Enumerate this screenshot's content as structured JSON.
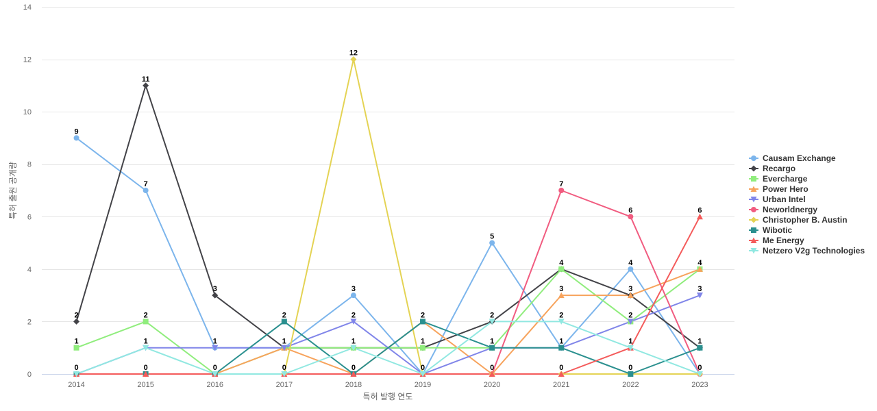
{
  "chart_data": {
    "type": "line",
    "title": "",
    "xlabel": "특허 발행 연도",
    "ylabel": "특허 출원 공개량",
    "ylim": [
      0,
      14
    ],
    "yticks": [
      0,
      2,
      4,
      6,
      8,
      10,
      12,
      14
    ],
    "categories": [
      "2014",
      "2015",
      "2016",
      "2017",
      "2018",
      "2019",
      "2020",
      "2021",
      "2022",
      "2023"
    ],
    "legend_position": "right",
    "series": [
      {
        "name": "Causam Exchange",
        "color": "#7cb5ec",
        "marker": "circle",
        "values": [
          9,
          7,
          1,
          1,
          3,
          0,
          5,
          1,
          4,
          0
        ]
      },
      {
        "name": "Recargo",
        "color": "#434348",
        "marker": "diamond",
        "values": [
          2,
          11,
          3,
          1,
          1,
          1,
          2,
          4,
          3,
          1
        ]
      },
      {
        "name": "Evercharge",
        "color": "#90ed7d",
        "marker": "square",
        "values": [
          1,
          2,
          0,
          1,
          1,
          1,
          1,
          4,
          2,
          4
        ]
      },
      {
        "name": "Power Hero",
        "color": "#f7a35c",
        "marker": "triangle",
        "values": [
          0,
          0,
          0,
          1,
          0,
          2,
          0,
          3,
          3,
          4
        ]
      },
      {
        "name": "Urban Intel",
        "color": "#8085e9",
        "marker": "triangle-down",
        "values": [
          0,
          1,
          1,
          1,
          2,
          0,
          1,
          1,
          2,
          3
        ]
      },
      {
        "name": "Neworldnergy",
        "color": "#f15c80",
        "marker": "circle",
        "values": [
          0,
          0,
          0,
          0,
          0,
          0,
          0,
          7,
          6,
          0
        ]
      },
      {
        "name": "Christopher B. Austin",
        "color": "#e4d354",
        "marker": "diamond",
        "values": [
          0,
          0,
          0,
          0,
          12,
          0,
          0,
          0,
          0,
          0
        ]
      },
      {
        "name": "Wibotic",
        "color": "#2b908f",
        "marker": "square",
        "values": [
          0,
          0,
          0,
          2,
          0,
          2,
          1,
          1,
          0,
          1
        ]
      },
      {
        "name": "Me Energy",
        "color": "#f45b5b",
        "marker": "triangle",
        "values": [
          0,
          0,
          0,
          0,
          0,
          0,
          0,
          0,
          1,
          6
        ]
      },
      {
        "name": "Netzero V2g Technologies",
        "color": "#91e8e1",
        "marker": "triangle-down",
        "values": [
          0,
          1,
          0,
          0,
          1,
          0,
          2,
          2,
          1,
          0
        ]
      }
    ],
    "data_labels": {
      "2014": [
        0,
        1,
        2,
        9
      ],
      "2015": [
        0,
        1,
        2,
        7,
        11
      ],
      "2016": [
        0,
        1,
        3
      ],
      "2017": [
        0,
        1,
        2
      ],
      "2018": [
        0,
        1,
        2,
        3,
        12
      ],
      "2019": [
        0,
        1,
        2
      ],
      "2020": [
        0,
        1,
        2,
        5
      ],
      "2021": [
        0,
        1,
        2,
        3,
        4,
        7
      ],
      "2022": [
        0,
        1,
        2,
        3,
        4,
        6
      ],
      "2023": [
        0,
        1,
        3,
        4,
        6
      ]
    }
  }
}
